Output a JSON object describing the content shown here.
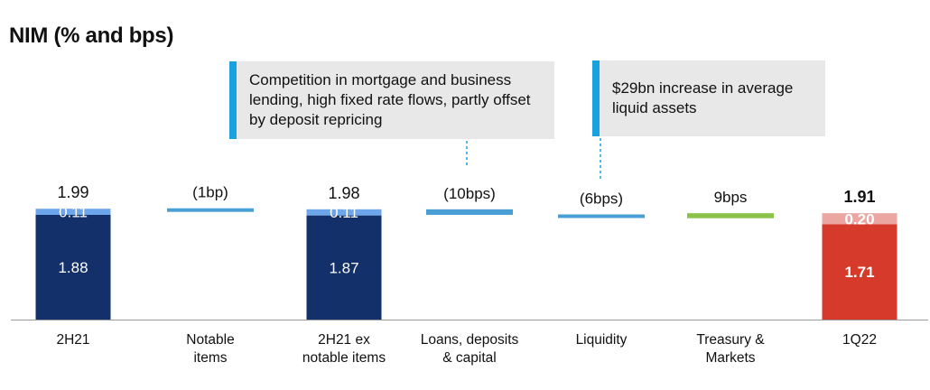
{
  "title": "NIM (% and bps)",
  "callouts": {
    "loans": "Competition in mortgage and business lending, high fixed rate flows, partly offset by deposit repricing",
    "liquidity": "$29bn increase in average liquid assets"
  },
  "colors": {
    "dark_navy": "#13306b",
    "light_blue_seg": "#6ea6ec",
    "driver_blue": "#4aa0d6",
    "driver_green": "#8bc34a",
    "red_base": "#d63a2b",
    "red_light": "#eba6a1",
    "callout_accent": "#1aa1e0",
    "callout_bg": "#e8e8e8"
  },
  "chart_data": {
    "type": "bar",
    "subtype": "waterfall",
    "units": "%",
    "categories": [
      "2H21",
      "Notable\nitems",
      "2H21 ex\nnotable items",
      "Loans, deposits\n& capital",
      "Liquidity",
      "Treasury &\nMarkets",
      "1Q22"
    ],
    "bars": [
      {
        "category": "2H21",
        "kind": "total",
        "total": 1.99,
        "total_label": "1.99",
        "segments": [
          {
            "value": 1.88,
            "label": "1.88",
            "color": "#13306b"
          },
          {
            "value": 0.11,
            "label": "0.11",
            "color": "#6ea6ec"
          }
        ]
      },
      {
        "category": "Notable items",
        "kind": "change",
        "change": -0.01,
        "label": "(1bp)",
        "color": "#4aa0d6"
      },
      {
        "category": "2H21 ex notable items",
        "kind": "total",
        "total": 1.98,
        "total_label": "1.98",
        "segments": [
          {
            "value": 1.87,
            "label": "1.87",
            "color": "#13306b"
          },
          {
            "value": 0.11,
            "label": "0.11",
            "color": "#6ea6ec"
          }
        ]
      },
      {
        "category": "Loans, deposits & capital",
        "kind": "change",
        "change": -0.1,
        "label": "(10bps)",
        "color": "#4aa0d6"
      },
      {
        "category": "Liquidity",
        "kind": "change",
        "change": -0.06,
        "label": "(6bps)",
        "color": "#4aa0d6"
      },
      {
        "category": "Treasury & Markets",
        "kind": "change",
        "change": 0.09,
        "label": "9bps",
        "color": "#8bc34a"
      },
      {
        "category": "1Q22",
        "kind": "total",
        "total": 1.91,
        "total_label": "1.91",
        "bold": true,
        "segments": [
          {
            "value": 1.71,
            "label": "1.71",
            "color": "#d63a2b"
          },
          {
            "value": 0.2,
            "label": "0.20",
            "color": "#eba6a1"
          }
        ]
      }
    ],
    "grid": false,
    "legend": "none"
  }
}
